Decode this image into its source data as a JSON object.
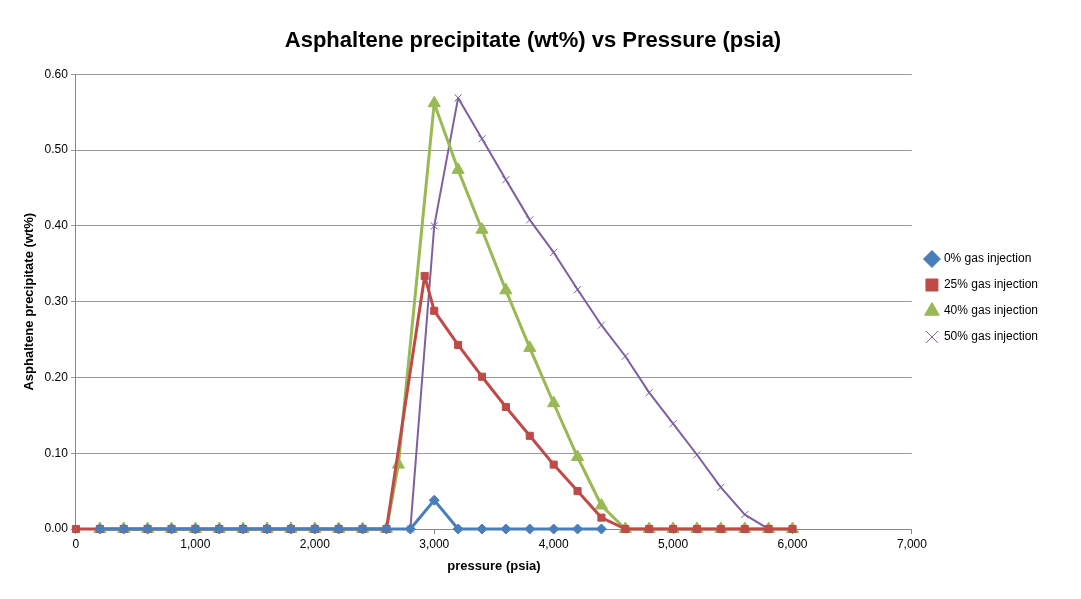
{
  "chart_data": {
    "type": "line",
    "title": "Asphaltene precipitate (wt%) vs Pressure (psia)",
    "xlabel": "pressure (psia)",
    "ylabel": "Asphaltene precipitate (wt%)",
    "xlim": [
      0,
      7000
    ],
    "xticks": [
      {
        "value": 0,
        "label": "0"
      },
      {
        "value": 1000,
        "label": "1,000"
      },
      {
        "value": 2000,
        "label": "2,000"
      },
      {
        "value": 3000,
        "label": "3,000"
      },
      {
        "value": 4000,
        "label": "4,000"
      },
      {
        "value": 5000,
        "label": "5,000"
      },
      {
        "value": 6000,
        "label": "6,000"
      },
      {
        "value": 7000,
        "label": "7,000"
      }
    ],
    "ylim": [
      0,
      0.6
    ],
    "yticks": [
      {
        "value": 0,
        "label": "0.00"
      },
      {
        "value": 0.1,
        "label": "0.10"
      },
      {
        "value": 0.2,
        "label": "0.20"
      },
      {
        "value": 0.3,
        "label": "0.30"
      },
      {
        "value": 0.4,
        "label": "0.40"
      },
      {
        "value": 0.5,
        "label": "0.50"
      },
      {
        "value": 0.6,
        "label": "0.60"
      }
    ],
    "grid": "y",
    "legend": "right",
    "series": [
      {
        "name": "0% gas injection",
        "color": "#4a7ebb",
        "marker": "diamond",
        "x": [
          200,
          400,
          600,
          800,
          1000,
          1200,
          1400,
          1600,
          1800,
          2000,
          2200,
          2400,
          2600,
          2800,
          3000,
          3200,
          3400,
          3600,
          3800,
          4000,
          4200,
          4400
        ],
        "values": [
          0,
          0,
          0,
          0,
          0,
          0,
          0,
          0,
          0,
          0,
          0,
          0,
          0,
          0,
          0.038,
          0,
          0,
          0,
          0,
          0,
          0,
          0
        ]
      },
      {
        "name": "25% gas injection",
        "color": "#be4b48",
        "marker": "square",
        "x": [
          0,
          200,
          400,
          600,
          800,
          1000,
          1200,
          1400,
          1600,
          1800,
          2000,
          2200,
          2400,
          2600,
          2920,
          3000,
          3200,
          3400,
          3600,
          3800,
          4000,
          4200,
          4400,
          4600,
          4800,
          5000,
          5200,
          5400,
          5600,
          5800,
          6000
        ],
        "values": [
          0,
          0,
          0,
          0,
          0,
          0,
          0,
          0,
          0,
          0,
          0,
          0,
          0,
          0,
          0.334,
          0.288,
          0.243,
          0.201,
          0.161,
          0.123,
          0.085,
          0.05,
          0.015,
          0,
          0,
          0,
          0,
          0,
          0,
          0,
          0
        ]
      },
      {
        "name": "40% gas injection",
        "color": "#98b954",
        "marker": "triangle",
        "x": [
          200,
          400,
          600,
          800,
          1000,
          1200,
          1400,
          1600,
          1800,
          2000,
          2200,
          2400,
          2600,
          2700,
          3000,
          3200,
          3400,
          3600,
          3800,
          4000,
          4200,
          4400,
          4600,
          4800,
          5000,
          5200,
          5400,
          5600,
          5800,
          6000
        ],
        "values": [
          0,
          0,
          0,
          0,
          0,
          0,
          0,
          0,
          0,
          0,
          0,
          0,
          0,
          0.085,
          0.562,
          0.474,
          0.395,
          0.315,
          0.239,
          0.166,
          0.095,
          0.031,
          0,
          0,
          0,
          0,
          0,
          0,
          0,
          0
        ]
      },
      {
        "name": "50% gas injection",
        "color": "#7d60a0",
        "marker": "cross",
        "x": [
          200,
          400,
          600,
          800,
          1000,
          1200,
          1400,
          1600,
          1800,
          2000,
          2200,
          2400,
          2600,
          2800,
          3000,
          3200,
          3400,
          3600,
          3800,
          4000,
          4200,
          4400,
          4600,
          4800,
          5000,
          5200,
          5400,
          5600,
          5800,
          6000
        ],
        "values": [
          0,
          0,
          0,
          0,
          0,
          0,
          0,
          0,
          0,
          0,
          0,
          0,
          0,
          0,
          0.4,
          0.569,
          0.515,
          0.461,
          0.408,
          0.365,
          0.316,
          0.269,
          0.228,
          0.18,
          0.139,
          0.098,
          0.055,
          0.019,
          0,
          0
        ]
      }
    ]
  }
}
